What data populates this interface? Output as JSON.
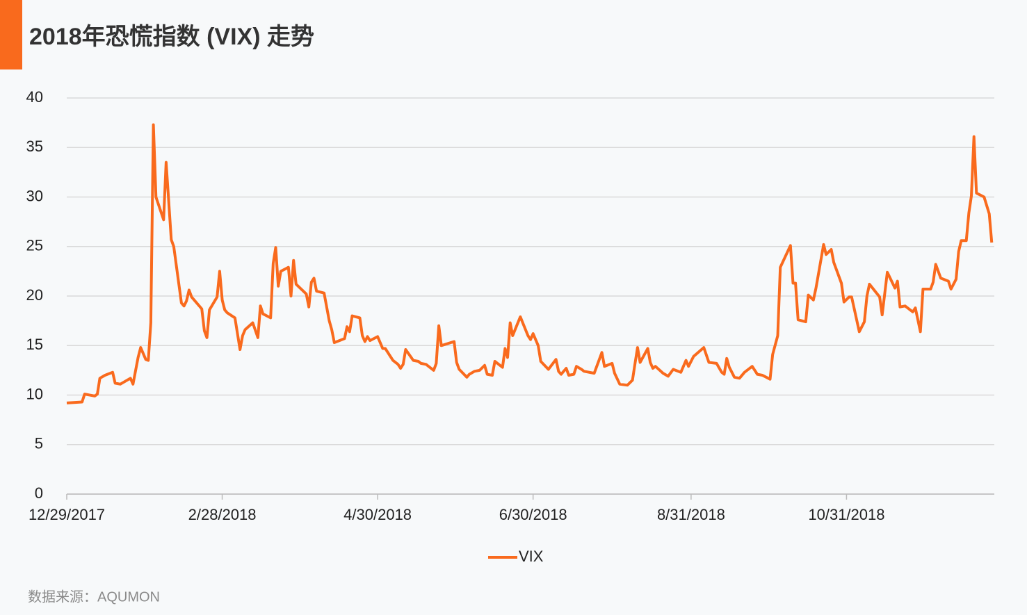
{
  "chart_data": {
    "type": "line",
    "title": "2018年恐慌指数 (VIX) 走势",
    "source": "数据来源：AQUMON",
    "ylim": [
      0,
      40
    ],
    "yticks": [
      0,
      5,
      10,
      15,
      20,
      25,
      30,
      35,
      40
    ],
    "xlim": [
      "12/29/2017",
      "12/28/2018"
    ],
    "xticks": [
      "12/29/2017",
      "2/28/2018",
      "4/30/2018",
      "6/30/2018",
      "8/31/2018",
      "10/31/2018"
    ],
    "grid": true,
    "legend": "bottom",
    "x": [
      "12/29/2017",
      "1/4/2018",
      "1/5/2018",
      "1/9/2018",
      "1/10/2018",
      "1/11/2018",
      "1/13/2018",
      "1/16/2018",
      "1/17/2018",
      "1/19/2018",
      "1/23/2018",
      "1/24/2018",
      "1/26/2018",
      "1/27/2018",
      "1/29/2018",
      "1/30/2018",
      "1/31/2018",
      "2/1/2018",
      "2/2/2018",
      "2/5/2018",
      "2/6/2018",
      "2/8/2018",
      "2/9/2018",
      "2/12/2018",
      "2/13/2018",
      "2/14/2018",
      "2/15/2018",
      "2/16/2018",
      "2/20/2018",
      "2/21/2018",
      "2/22/2018",
      "2/23/2018",
      "2/26/2018",
      "2/27/2018",
      "2/28/2018",
      "3/1/2018",
      "3/2/2018",
      "3/5/2018",
      "3/7/2018",
      "3/8/2018",
      "3/9/2018",
      "3/12/2018",
      "3/14/2018",
      "3/15/2018",
      "3/16/2018",
      "3/19/2018",
      "3/20/2018",
      "3/21/2018",
      "3/22/2018",
      "3/23/2018",
      "3/26/2018",
      "3/27/2018",
      "3/28/2018",
      "3/29/2018",
      "4/2/2018",
      "4/3/2018",
      "4/4/2018",
      "4/5/2018",
      "4/6/2018",
      "4/9/2018",
      "4/11/2018",
      "4/12/2018",
      "4/13/2018",
      "4/17/2018",
      "4/18/2018",
      "4/19/2018",
      "4/20/2018",
      "4/23/2018",
      "4/24/2018",
      "4/25/2018",
      "4/26/2018",
      "4/27/2018",
      "4/30/2018",
      "5/2/2018",
      "5/3/2018",
      "5/6/2018",
      "5/8/2018",
      "5/9/2018",
      "5/10/2018",
      "5/11/2018",
      "5/14/2018",
      "5/16/2018",
      "5/17/2018",
      "5/19/2018",
      "5/22/2018",
      "5/23/2018",
      "5/24/2018",
      "5/25/2018",
      "5/30/2018",
      "5/31/2018",
      "6/1/2018",
      "6/4/2018",
      "6/5/2018",
      "6/7/2018",
      "6/9/2018",
      "6/11/2018",
      "6/12/2018",
      "6/14/2018",
      "6/15/2018",
      "6/18/2018",
      "6/19/2018",
      "6/20/2018",
      "6/21/2018",
      "6/22/2018",
      "6/25/2018",
      "6/28/2018",
      "6/29/2018",
      "6/30/2018",
      "7/2/2018",
      "7/3/2018",
      "7/6/2018",
      "7/9/2018",
      "7/10/2018",
      "7/11/2018",
      "7/13/2018",
      "7/14/2018",
      "7/16/2018",
      "7/17/2018",
      "7/19/2018",
      "7/20/2018",
      "7/24/2018",
      "7/27/2018",
      "7/28/2018",
      "7/31/2018",
      "8/1/2018",
      "8/3/2018",
      "8/6/2018",
      "8/8/2018",
      "8/9/2018",
      "8/10/2018",
      "8/11/2018",
      "8/14/2018",
      "8/15/2018",
      "8/16/2018",
      "8/17/2018",
      "8/20/2018",
      "8/22/2018",
      "8/24/2018",
      "8/27/2018",
      "8/29/2018",
      "8/30/2018",
      "9/1/2018",
      "9/5/2018",
      "9/7/2018",
      "9/10/2018",
      "9/12/2018",
      "9/13/2018",
      "9/14/2018",
      "9/15/2018",
      "9/17/2018",
      "9/19/2018",
      "9/21/2018",
      "9/24/2018",
      "9/26/2018",
      "9/28/2018",
      "10/1/2018",
      "10/2/2018",
      "10/4/2018",
      "10/5/2018",
      "10/9/2018",
      "10/10/2018",
      "10/11/2018",
      "10/12/2018",
      "10/15/2018",
      "10/16/2018",
      "10/18/2018",
      "10/19/2018",
      "10/22/2018",
      "10/23/2018",
      "10/25/2018",
      "10/26/2018",
      "10/29/2018",
      "10/30/2018",
      "11/1/2018",
      "11/2/2018",
      "11/5/2018",
      "11/7/2018",
      "11/8/2018",
      "11/9/2018",
      "11/13/2018",
      "11/14/2018",
      "11/16/2018",
      "11/19/2018",
      "11/20/2018",
      "11/21/2018",
      "11/23/2018",
      "11/26/2018",
      "11/27/2018",
      "11/29/2018",
      "11/30/2018",
      "12/3/2018",
      "12/4/2018",
      "12/5/2018",
      "12/7/2018",
      "12/10/2018",
      "12/11/2018",
      "12/13/2018",
      "12/14/2018",
      "12/15/2018",
      "12/17/2018",
      "12/18/2018",
      "12/19/2018",
      "12/20/2018",
      "12/21/2018",
      "12/24/2018",
      "12/26/2018",
      "12/27/2018"
    ],
    "series": [
      {
        "name": "VIX",
        "color": "#f96a1d",
        "values": [
          9.2,
          9.3,
          10.1,
          9.9,
          10.1,
          11.7,
          12.0,
          12.3,
          11.2,
          11.1,
          11.7,
          11.1,
          13.8,
          14.8,
          13.6,
          13.5,
          17.3,
          37.3,
          30.0,
          27.7,
          33.5,
          25.7,
          25.0,
          19.3,
          19.0,
          19.5,
          20.6,
          19.9,
          18.7,
          16.5,
          15.8,
          18.6,
          19.9,
          22.5,
          19.6,
          18.6,
          18.3,
          17.8,
          14.6,
          16.0,
          16.6,
          17.3,
          15.8,
          19.0,
          18.2,
          17.8,
          23.3,
          24.9,
          21.0,
          22.5,
          22.9,
          20.0,
          23.6,
          21.2,
          20.2,
          18.9,
          21.4,
          21.8,
          20.5,
          20.3,
          17.5,
          16.6,
          15.3,
          15.7,
          16.9,
          16.4,
          18.0,
          17.8,
          16.0,
          15.4,
          15.9,
          15.5,
          15.9,
          14.7,
          14.7,
          13.5,
          13.1,
          12.7,
          13.1,
          14.6,
          13.5,
          13.4,
          13.2,
          13.1,
          12.5,
          13.2,
          17.0,
          15.0,
          15.4,
          13.3,
          12.6,
          11.8,
          12.1,
          12.4,
          12.5,
          13.0,
          12.1,
          12.0,
          13.4,
          12.8,
          14.7,
          13.8,
          17.3,
          16.0,
          17.9,
          16.0,
          15.6,
          16.2,
          15.0,
          13.4,
          12.6,
          13.6,
          12.4,
          12.1,
          12.7,
          12.0,
          12.1,
          12.9,
          12.6,
          12.4,
          12.2,
          14.3,
          12.9,
          13.2,
          12.2,
          11.1,
          11.0,
          11.5,
          13.2,
          14.8,
          13.3,
          14.7,
          13.3,
          12.7,
          12.9,
          12.2,
          11.9,
          12.6,
          12.3,
          13.5,
          12.9,
          13.9,
          14.8,
          13.3,
          13.2,
          12.3,
          12.1,
          13.7,
          12.8,
          11.8,
          11.7,
          12.3,
          12.9,
          12.1,
          12.0,
          11.6,
          14.1,
          16.0,
          22.9,
          25.1,
          21.3,
          21.3,
          17.6,
          17.4,
          20.1,
          19.6,
          20.8,
          25.2,
          24.2,
          24.7,
          23.4,
          21.3,
          19.4,
          19.9,
          19.9,
          16.4,
          17.4,
          20.0,
          21.2,
          19.9,
          18.1,
          22.4,
          20.8,
          21.5,
          18.9,
          19.0,
          18.4,
          18.8,
          16.4,
          20.7,
          20.7,
          21.4,
          23.2,
          21.8,
          21.5,
          20.7,
          21.7,
          24.5,
          25.6,
          25.6,
          28.4,
          30.1,
          36.1,
          30.4,
          30.0,
          28.3,
          25.4
        ]
      }
    ]
  }
}
